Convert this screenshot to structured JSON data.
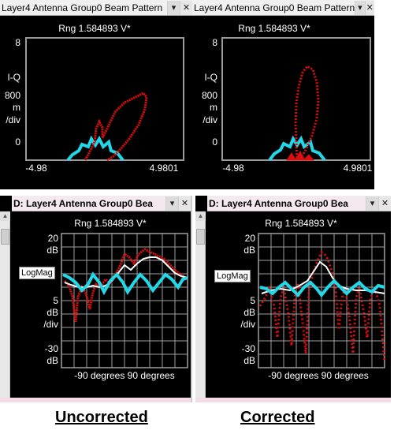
{
  "captions": {
    "left": "Uncorrected",
    "right": "Corrected"
  },
  "panels": {
    "top_left": {
      "title": "Layer4 Antenna Group0 Beam Pattern",
      "range": "Rng 1.584893  V*",
      "y_ticks": [
        "8",
        "I-Q",
        "800",
        "m",
        "/div",
        "0"
      ],
      "x_ticks": [
        "-4.98",
        "4.9801"
      ]
    },
    "top_right": {
      "title": "Layer4 Antenna Group0 Beam Pattern",
      "range": "Rng 1.584893  V*",
      "y_ticks": [
        "8",
        "I-Q",
        "800",
        "m",
        "/div",
        "0"
      ],
      "x_ticks": [
        "-4.98",
        "4.9801"
      ]
    },
    "bottom_left": {
      "title": "D: Layer4 Antenna Group0 Bea",
      "range": "Rng 1.584893  V*",
      "y_ticks": [
        "20",
        "dB",
        "5",
        "dB",
        "/div",
        "-30",
        "dB"
      ],
      "x_ticks": "-90 degrees  90 degrees",
      "format_label": "LogMag"
    },
    "bottom_right": {
      "title": "D: Layer4 Antenna Group0 Bea",
      "range": "Rng 1.584893  V*",
      "y_ticks": [
        "20",
        "dB",
        "5",
        "dB",
        "/div",
        "-30",
        "dB"
      ],
      "x_ticks": "-90 degrees  90 degrees",
      "format_label": "LogMag"
    }
  },
  "icons": {
    "dropdown": "▾",
    "close": "✕",
    "scroll_up": "▲"
  },
  "colors": {
    "cyan": "#22d8e8",
    "red": "#dd0d0d",
    "white": "#ffffff",
    "grid": "#a0a0a0"
  }
}
